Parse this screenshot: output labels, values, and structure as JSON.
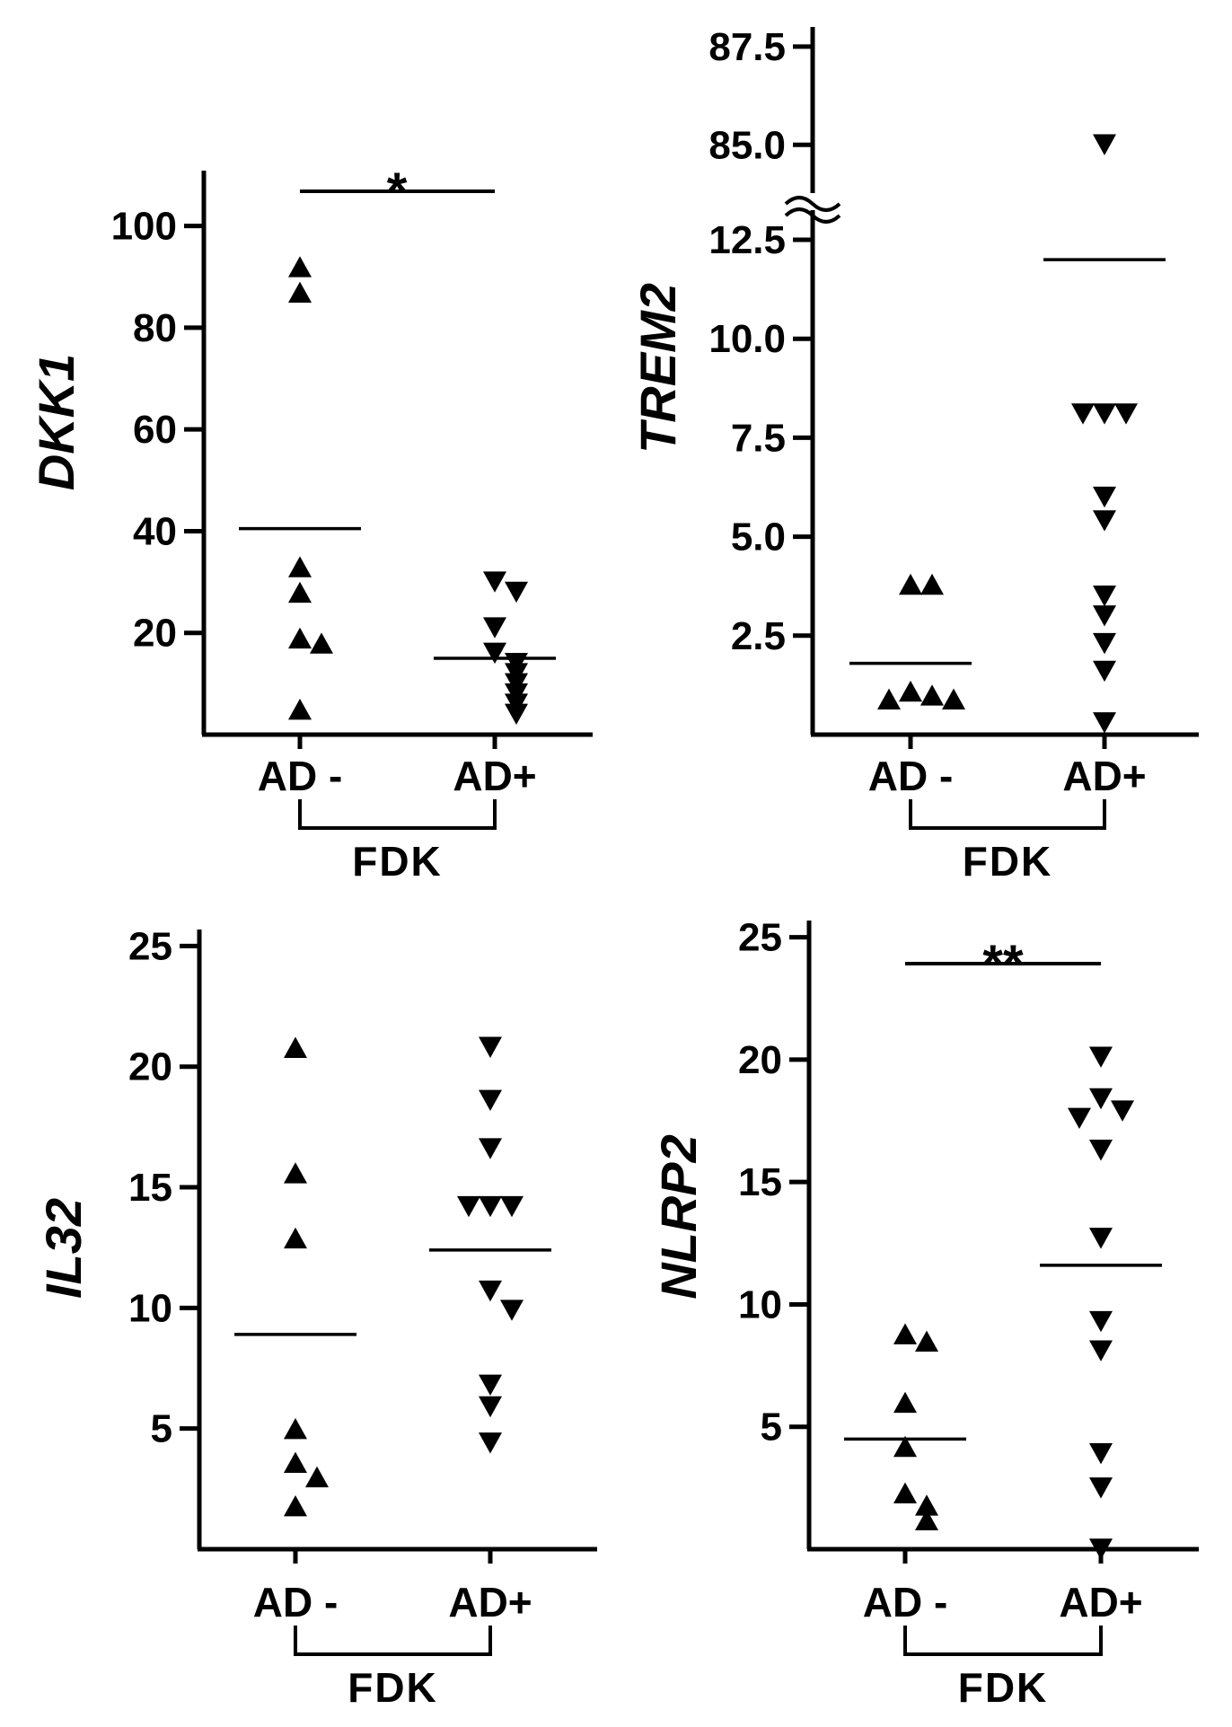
{
  "chart_data": [
    {
      "type": "scatter",
      "ylabel": "DKK1",
      "group_label": "FDK",
      "categories": [
        "AD -",
        "AD+"
      ],
      "ylim": [
        0,
        110
      ],
      "yticks": [
        20,
        40,
        60,
        80,
        100
      ],
      "ytick_labels": [
        "20",
        "40",
        "60",
        "80",
        "100"
      ],
      "significance": "*",
      "series": [
        {
          "category": "AD -",
          "marker": "triangle-up",
          "mean": 40.5,
          "values": [
            92,
            87,
            33,
            28,
            19,
            18,
            5
          ]
        },
        {
          "category": "AD+",
          "marker": "triangle-down",
          "mean": 15,
          "values": [
            30,
            28,
            21,
            16,
            14,
            12,
            10,
            8,
            6,
            4
          ]
        }
      ]
    },
    {
      "type": "scatter",
      "ylabel": "TREM2",
      "group_label": "FDK",
      "categories": [
        "AD -",
        "AD+"
      ],
      "ylim": [
        0,
        13
      ],
      "axis_break": true,
      "break_segment": {
        "range": [
          84,
          88
        ],
        "ticks": [
          85.0,
          87.5
        ],
        "tick_labels": [
          "85.0",
          "87.5"
        ]
      },
      "yticks": [
        2.5,
        5.0,
        7.5,
        10.0,
        12.5
      ],
      "ytick_labels": [
        "2.5",
        "5.0",
        "7.5",
        "10.0",
        "12.5"
      ],
      "significance": "",
      "series": [
        {
          "category": "AD -",
          "marker": "triangle-up",
          "mean": 1.8,
          "values": [
            3.8,
            3.8,
            1.1,
            1.0,
            0.9,
            0.9
          ]
        },
        {
          "category": "AD+",
          "marker": "triangle-down",
          "mean": 12.0,
          "values": [
            85.0,
            8.1,
            8.1,
            8.1,
            6.0,
            5.4,
            3.5,
            3.0,
            2.3,
            1.6,
            0.3
          ]
        }
      ]
    },
    {
      "type": "scatter",
      "ylabel": "IL32",
      "group_label": "FDK",
      "categories": [
        "AD -",
        "AD+"
      ],
      "ylim": [
        0,
        25.5
      ],
      "yticks": [
        5,
        10,
        15,
        20,
        25
      ],
      "ytick_labels": [
        "5",
        "10",
        "15",
        "20",
        "25"
      ],
      "significance": "",
      "series": [
        {
          "category": "AD -",
          "marker": "triangle-up",
          "mean": 8.9,
          "values": [
            20.8,
            15.6,
            12.9,
            5.0,
            3.6,
            3.0,
            1.8
          ]
        },
        {
          "category": "AD+",
          "marker": "triangle-down",
          "mean": 12.4,
          "values": [
            20.8,
            18.6,
            16.6,
            14.2,
            14.2,
            14.2,
            10.7,
            9.9,
            6.8,
            5.9,
            4.4
          ]
        }
      ]
    },
    {
      "type": "scatter",
      "ylabel": "NLRP2",
      "group_label": "FDK",
      "categories": [
        "AD -",
        "AD+"
      ],
      "ylim": [
        0,
        25.5
      ],
      "yticks": [
        5,
        10,
        15,
        20,
        25
      ],
      "ytick_labels": [
        "5",
        "10",
        "15",
        "20",
        "25"
      ],
      "significance": "**",
      "series": [
        {
          "category": "AD -",
          "marker": "triangle-up",
          "mean": 4.5,
          "values": [
            8.8,
            8.5,
            6.0,
            4.2,
            2.3,
            1.8,
            1.2
          ]
        },
        {
          "category": "AD+",
          "marker": "triangle-down",
          "mean": 11.6,
          "values": [
            20.1,
            18.4,
            17.9,
            17.6,
            16.3,
            12.7,
            9.3,
            8.1,
            3.9,
            2.5,
            0.0
          ]
        }
      ]
    }
  ]
}
